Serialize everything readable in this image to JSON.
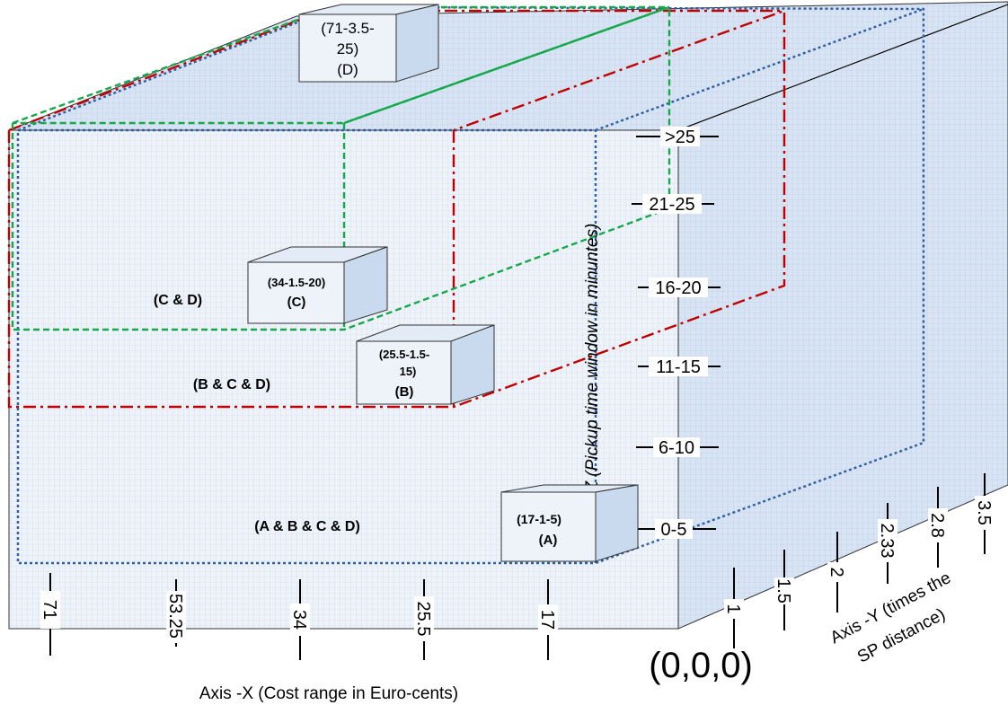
{
  "axes": {
    "x_title": "Axis -X (Cost range in Euro-cents)",
    "y_title_line1": "Axis -Y (times the",
    "y_title_line2": "SP distance)",
    "z_title": "Axis -Z (Pickup time window in minuntes)",
    "origin": "(0,0,0)",
    "x_ticks": [
      "71",
      "53.25",
      "34",
      "25.5",
      "17"
    ],
    "y_ticks": [
      "1",
      "1.5",
      "2",
      "2.33",
      "2.8",
      "3.5"
    ],
    "z_ticks": [
      ">25",
      "21-25",
      "16-20",
      "11-15",
      "6-10",
      "0-5"
    ]
  },
  "boxes": {
    "A": {
      "line1": "(17-1-5)",
      "line2": "(A)"
    },
    "B": {
      "line1": "(25.5-1.5-",
      "line2": "15)",
      "line3": "(B)"
    },
    "C": {
      "line1": "(34-1.5-20)",
      "line2": "(C)"
    },
    "D": {
      "line1": "(71-3.5-",
      "line2": "25)",
      "line3": "(D)"
    }
  },
  "regions": {
    "abcd": "(A & B & C & D)",
    "bcd": "(B & C & D)",
    "cd": "(C & D)"
  },
  "colors": {
    "A": "#2e5fa3",
    "B": "#c00000",
    "C": "#17a84b",
    "D": "#2e5fa3",
    "face_front": "#eef3fa",
    "face_side": "#d4e1f1",
    "grid": "#b7cbe6"
  }
}
